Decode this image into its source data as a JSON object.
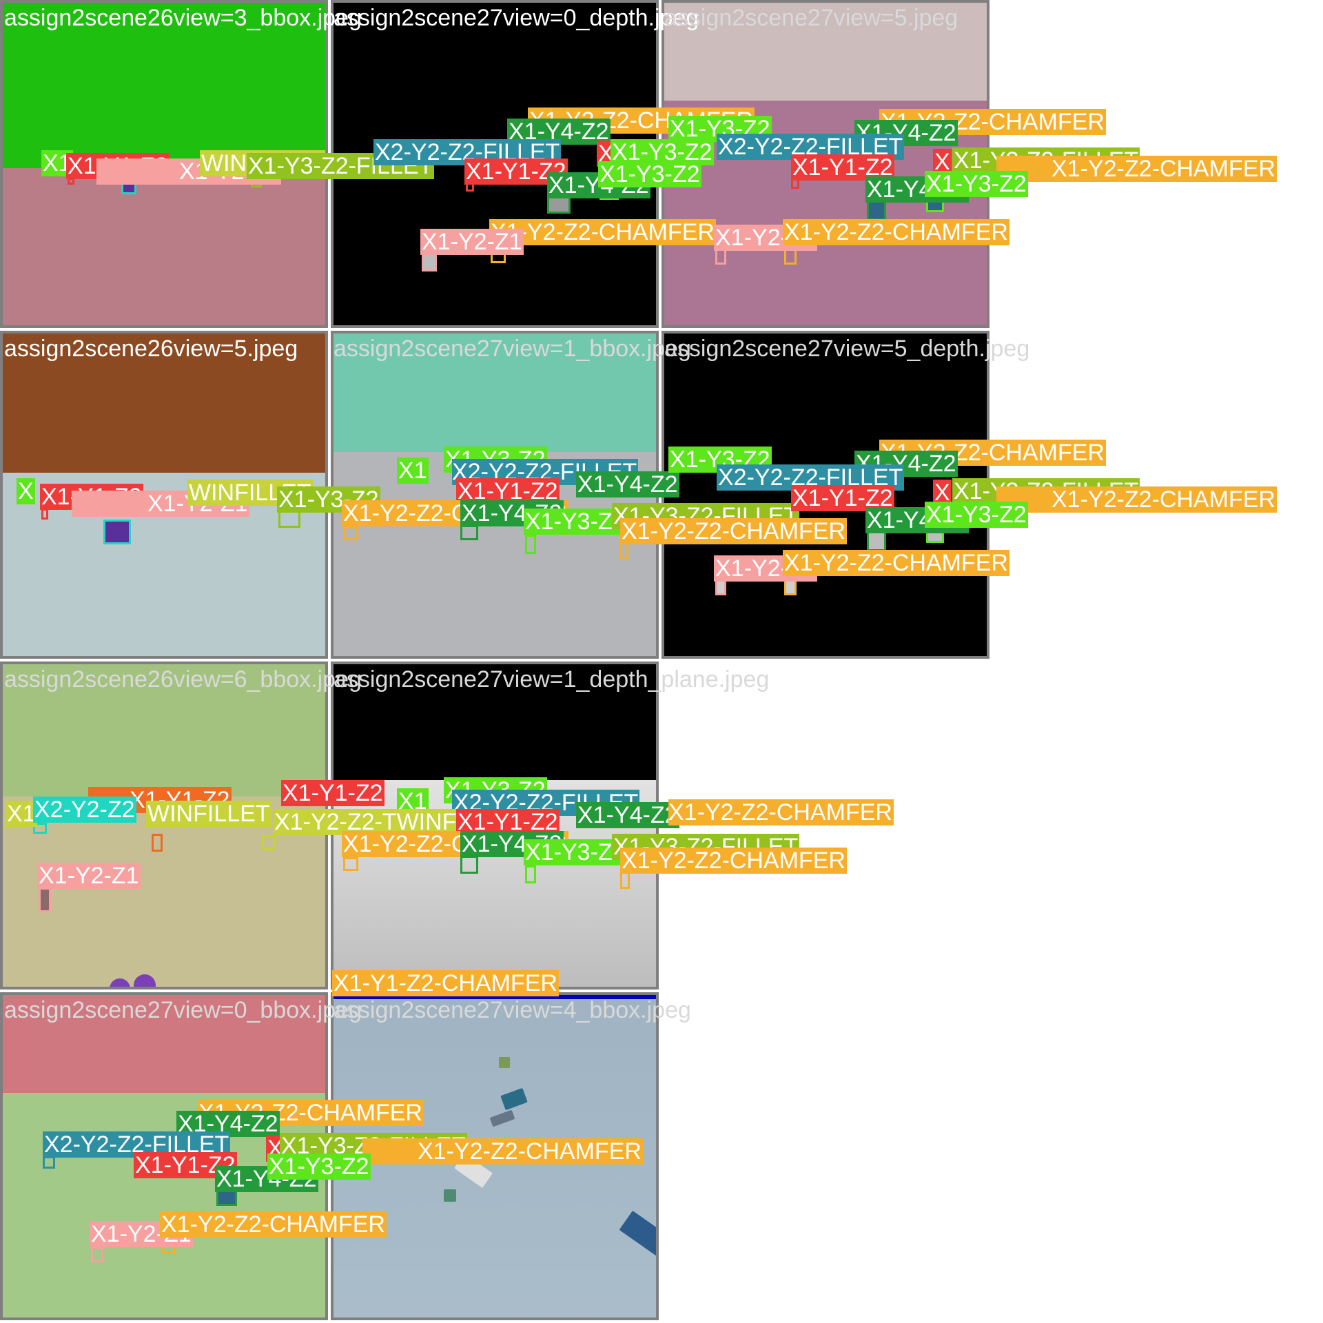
{
  "tiles": [
    {
      "id": "t1",
      "title": "assign2scene26view=3_bbox.jpeg",
      "sky": "#1fbf0f",
      "ground": "#b87d86"
    },
    {
      "id": "t2",
      "title": "assign2scene27view=0_depth.jpeg",
      "sky": "#000000",
      "ground": "#000000"
    },
    {
      "id": "t3",
      "title": "assign2scene27view=5.jpeg",
      "sky": "#ccbcbc",
      "ground": "#ab7594"
    },
    {
      "id": "t4",
      "title": "assign2scene26view=5.jpeg",
      "sky": "#8c4a22",
      "ground": "#b8cacc"
    },
    {
      "id": "t5",
      "title": "assign2scene27view=1_bbox.jpeg",
      "sky": "#72c8ad",
      "ground": "#b3b5b8"
    },
    {
      "id": "t6",
      "title": "assign2scene27view=5_depth.jpeg",
      "sky": "#000000",
      "ground": "#000000"
    },
    {
      "id": "t7",
      "title": "assign2scene26view=6_bbox.jpeg",
      "sky": "#a3c27f",
      "ground": "#c6bf94"
    },
    {
      "id": "t8",
      "title": "assign2scene27view=1_depth_plane.jpeg",
      "sky": "#000000",
      "ground": "#c8c8c8"
    },
    {
      "id": "t9",
      "title": "assign2scene27view=0_bbox.jpeg",
      "sky": "#d07880",
      "ground": "#a2c988"
    },
    {
      "id": "t10",
      "title": "assign2scene27view=4_bbox.jpeg",
      "sky": "#9fb3c3",
      "ground": "#a4b8c6"
    }
  ],
  "labels": {
    "x1y1z2": "X1-Y1-Z2",
    "x1y2z1": "X1-Y2-Z1",
    "x1y2z2_chamfer": "X1-Y2-Z2-CHAMFER",
    "x1y3z2": "X1-Y3-Z2",
    "x1y3z2_fillet": "X1-Y3-Z2-FILLET",
    "x1y4z2": "X1-Y4-Z2",
    "x2y2z2_fillet": "X2-Y2-Z2-FILLET",
    "x1y2z2_twinfillet": "X1-Y2-Z2-TWINFILLET",
    "x1y1z2_chamfer": "X1-Y1-Z2-CHAMFER",
    "x2y2z2": "X2-Y2-Z2",
    "winfillet": "WINFILLET",
    "x1": "X1",
    "x": "X"
  },
  "colors": {
    "red": "#ef3a3a",
    "pink": "#f7a0a0",
    "orange": "#f6ae2d",
    "lime": "#5ee61c",
    "olive": "#93c21f",
    "darkgreen": "#259a3a",
    "teal": "#2e8fa3",
    "cyan": "#1fd6c1",
    "yellow": "#c8d23a",
    "redorange": "#f06a23"
  }
}
